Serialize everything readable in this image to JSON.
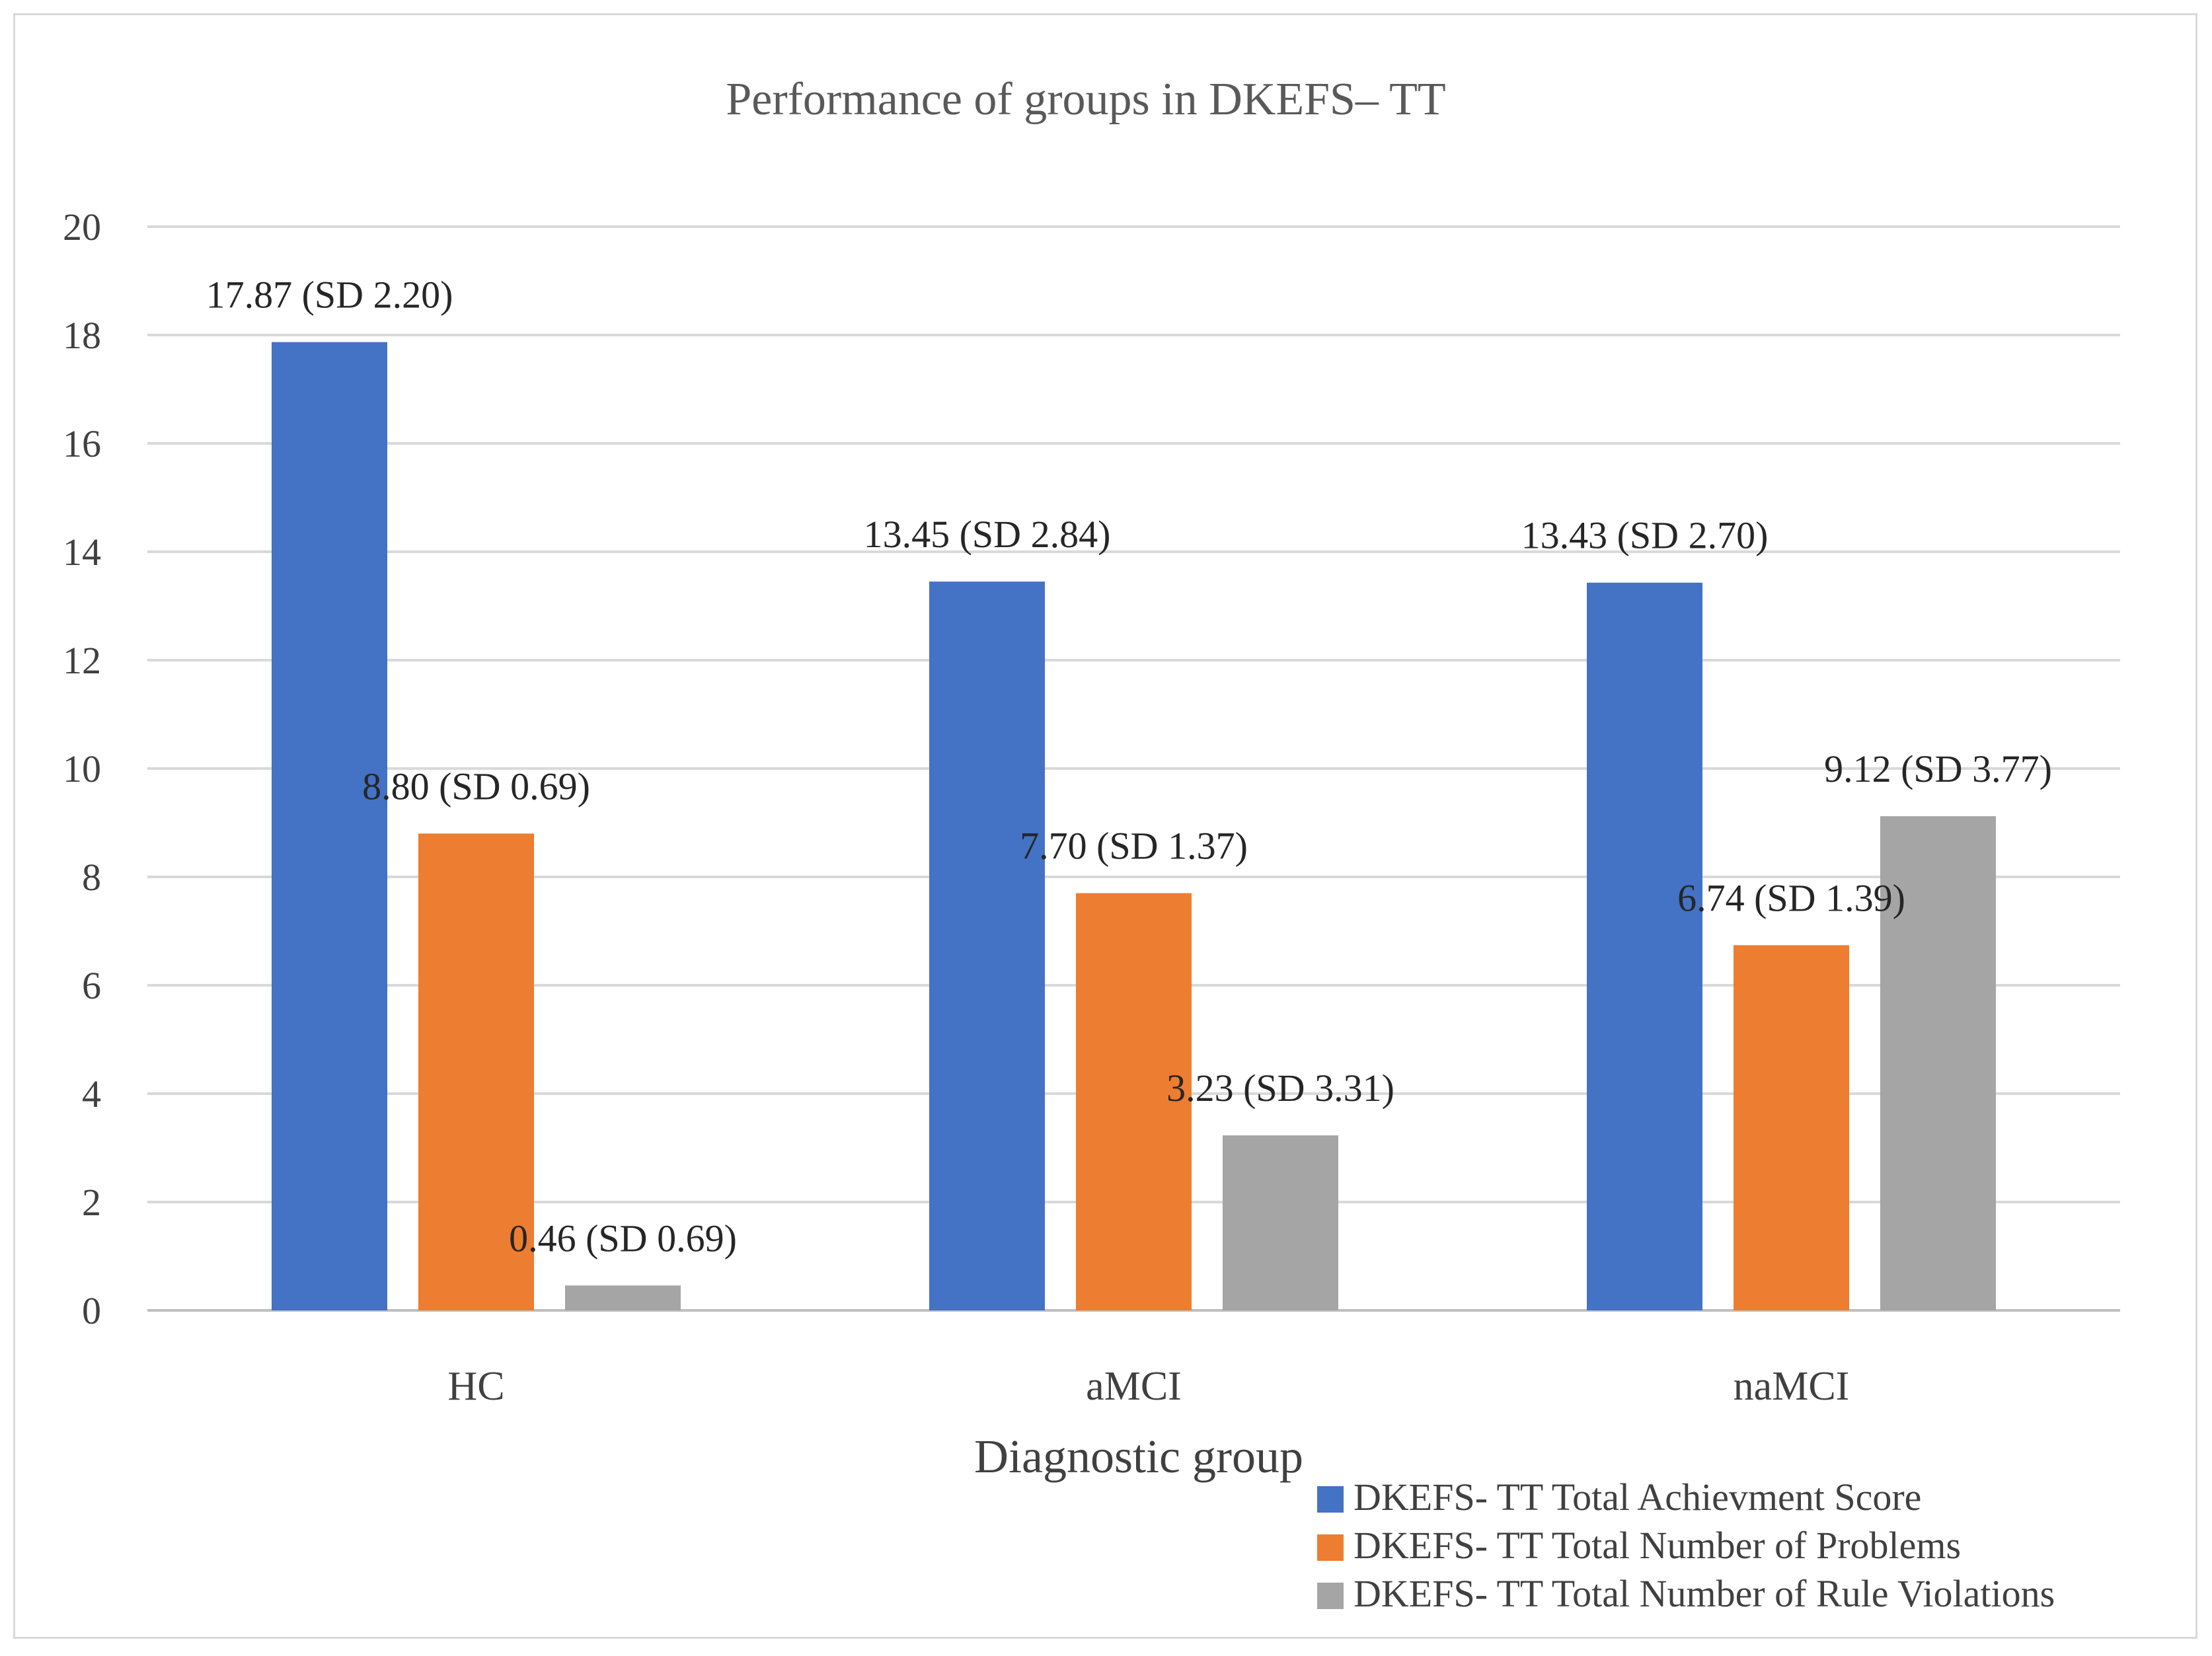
{
  "chart_data": {
    "type": "bar",
    "title": "Performance of groups in DKEFS– TT",
    "xlabel": "Diagnostic group",
    "ylabel": "",
    "ylim": [
      0,
      20
    ],
    "yticks": [
      0,
      2,
      4,
      6,
      8,
      10,
      12,
      14,
      16,
      18,
      20
    ],
    "grid": true,
    "legend_position": "bottom-right",
    "categories": [
      "HC",
      "aMCI",
      "naMCI"
    ],
    "series": [
      {
        "name": "DKEFS- TT Total Achievment Score",
        "color": "#4472c4",
        "values": [
          17.87,
          13.45,
          13.43
        ],
        "labels": [
          "17.87 (SD 2.20)",
          "13.45 (SD 2.84)",
          "13.43 (SD 2.70)"
        ]
      },
      {
        "name": "DKEFS- TT Total Number of Problems",
        "color": "#ed7d31",
        "values": [
          8.8,
          7.7,
          6.74
        ],
        "labels": [
          "8.80 (SD 0.69)",
          "7.70 (SD 1.37)",
          "6.74 (SD 1.39)"
        ]
      },
      {
        "name": "DKEFS- TT Total Number of Rule Violations",
        "color": "#a5a5a5",
        "values": [
          0.46,
          3.23,
          9.12
        ],
        "labels": [
          "0.46 (SD 0.69)",
          "3.23 (SD 3.31)",
          "9.12 (SD 3.77)"
        ]
      }
    ]
  }
}
